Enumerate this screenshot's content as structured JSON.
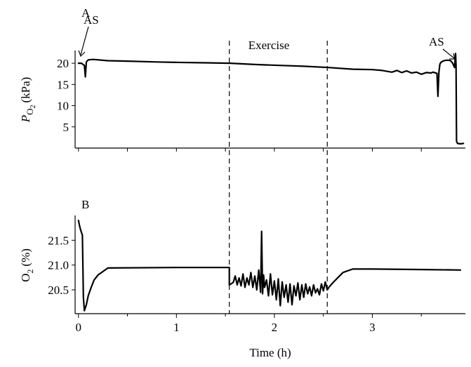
{
  "chart_data": [
    {
      "panel_label": "A",
      "type": "line",
      "ylabel_main": "P",
      "ylabel_sub": "O",
      "ylabel_subsub": "2",
      "ylabel_unit": "(kPa)",
      "yticks": [
        "5",
        "10",
        "15",
        "20"
      ],
      "ylim": [
        0,
        23
      ],
      "xlim": [
        -0.02,
        3.95
      ],
      "annotations": [
        {
          "label": "AS",
          "x": 0.07,
          "y": 19.5
        },
        {
          "label": "Exercise",
          "x": 2.05,
          "y": 22.4
        },
        {
          "label": "AS",
          "x": 3.7,
          "y": 20.5
        }
      ],
      "series": [
        {
          "x": [
            0.0,
            0.03,
            0.06,
            0.07,
            0.08,
            0.1,
            0.15,
            0.3,
            0.5,
            0.8,
            1.0,
            1.3,
            1.55,
            1.8,
            2.05,
            2.3,
            2.55,
            2.8,
            3.0,
            3.1,
            3.2,
            3.25,
            3.3,
            3.35,
            3.4,
            3.45,
            3.5,
            3.55,
            3.6,
            3.62,
            3.66,
            3.67,
            3.68,
            3.69,
            3.7,
            3.72,
            3.75,
            3.78,
            3.8,
            3.82,
            3.84,
            3.85,
            3.855,
            3.86,
            3.87,
            3.9,
            3.93
          ],
          "y": [
            20.0,
            20.0,
            19.5,
            16.8,
            20.3,
            20.8,
            20.9,
            20.6,
            20.5,
            20.3,
            20.2,
            20.1,
            20.0,
            19.7,
            19.5,
            19.3,
            19.0,
            18.6,
            18.5,
            18.3,
            17.9,
            18.3,
            17.8,
            18.2,
            17.7,
            17.9,
            17.4,
            17.8,
            17.7,
            17.9,
            17.6,
            12.2,
            17.9,
            19.8,
            20.2,
            20.5,
            20.7,
            20.7,
            20.6,
            20.0,
            19.0,
            22.3,
            19.5,
            1.6,
            1.1,
            1.0,
            1.1
          ]
        }
      ]
    },
    {
      "panel_label": "B",
      "type": "line",
      "ylabel_main": "O",
      "ylabel_subsub": "2",
      "ylabel_unit": "(%)",
      "xlabel": "Time (h)",
      "xticks": [
        "0",
        "1",
        "2",
        "3"
      ],
      "yticks": [
        "20.5",
        "21.0",
        "21.5"
      ],
      "ylim": [
        20.02,
        22.0
      ],
      "xlim": [
        -0.02,
        3.95
      ],
      "series": [
        {
          "x": [
            0.0,
            0.01,
            0.02,
            0.04,
            0.05,
            0.06,
            0.08,
            0.1,
            0.13,
            0.16,
            0.2,
            0.25,
            0.3,
            1.0,
            1.54,
            1.54,
            1.58,
            1.6,
            1.62,
            1.64,
            1.66,
            1.68,
            1.7,
            1.72,
            1.74,
            1.76,
            1.78,
            1.8,
            1.82,
            1.84,
            1.86,
            1.87,
            1.88,
            1.89,
            1.9,
            1.92,
            1.94,
            1.96,
            1.98,
            2.0,
            2.02,
            2.04,
            2.06,
            2.08,
            2.1,
            2.12,
            2.14,
            2.16,
            2.18,
            2.2,
            2.22,
            2.24,
            2.26,
            2.28,
            2.3,
            2.32,
            2.34,
            2.36,
            2.38,
            2.4,
            2.42,
            2.44,
            2.46,
            2.48,
            2.5,
            2.52,
            2.54,
            2.56,
            2.6,
            2.7,
            2.8,
            3.0,
            3.5,
            3.9
          ],
          "y": [
            21.9,
            21.8,
            21.72,
            21.6,
            20.35,
            20.08,
            20.2,
            20.38,
            20.55,
            20.7,
            20.8,
            20.87,
            20.94,
            20.95,
            20.95,
            20.6,
            20.65,
            20.78,
            20.6,
            20.74,
            20.58,
            20.82,
            20.55,
            20.74,
            20.6,
            20.85,
            20.55,
            20.78,
            20.5,
            20.9,
            20.45,
            21.68,
            20.42,
            20.8,
            20.55,
            20.7,
            20.38,
            20.82,
            20.4,
            20.68,
            20.3,
            20.72,
            20.18,
            20.66,
            20.35,
            20.6,
            20.25,
            20.62,
            20.2,
            20.58,
            20.38,
            20.64,
            20.3,
            20.6,
            20.35,
            20.62,
            20.42,
            20.56,
            20.38,
            20.6,
            20.44,
            20.52,
            20.4,
            20.62,
            20.48,
            20.66,
            20.5,
            20.56,
            20.65,
            20.85,
            20.92,
            20.92,
            20.91,
            20.9
          ]
        }
      ]
    }
  ],
  "exercise_lines_x": [
    1.54,
    2.54
  ]
}
